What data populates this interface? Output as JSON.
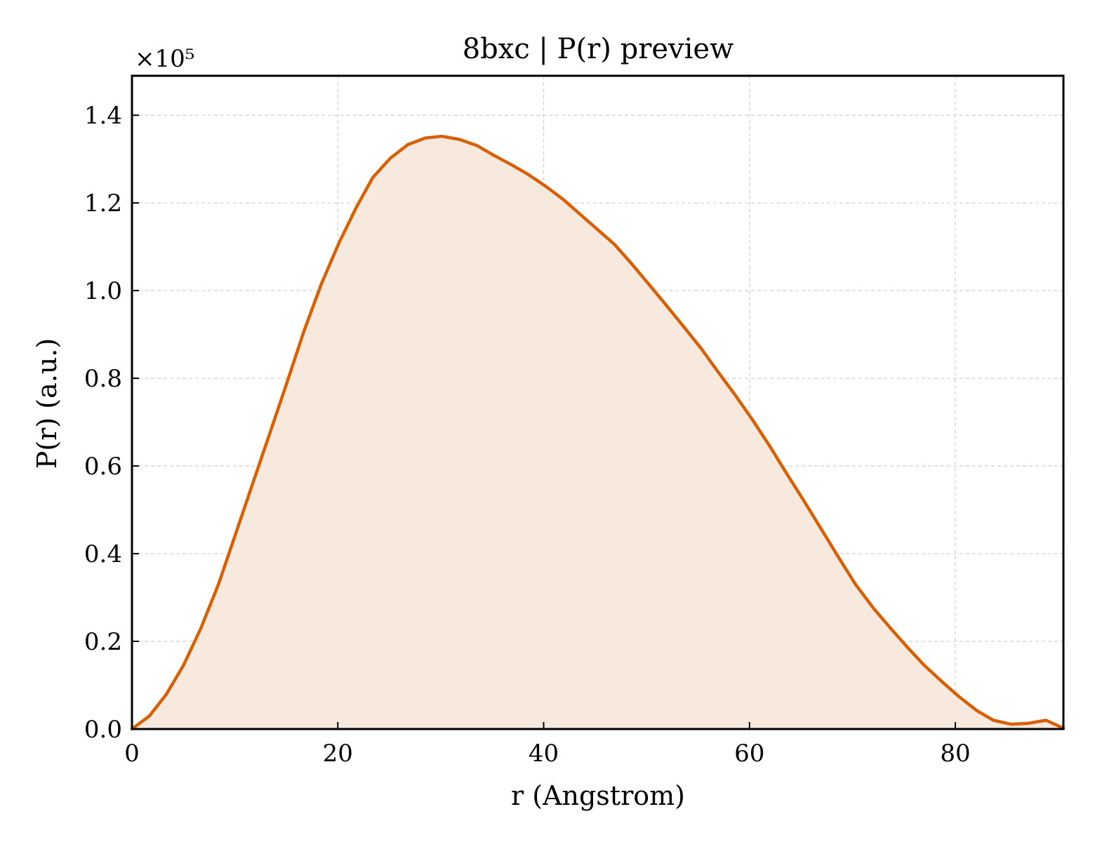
{
  "chart_data": {
    "type": "area",
    "title": "8bxc | P(r) preview",
    "xlabel": "r (Angstrom)",
    "ylabel": "P(r) (a.u.)",
    "y_multiplier_label": "×10⁵",
    "y_multiplier": 100000,
    "xlim": [
      0,
      90.5
    ],
    "ylim": [
      0,
      1.49
    ],
    "xticks": [
      0,
      20,
      40,
      60,
      80
    ],
    "yticks": [
      0.0,
      0.2,
      0.4,
      0.6,
      0.8,
      1.0,
      1.2,
      1.4
    ],
    "xtick_labels": [
      "0",
      "20",
      "40",
      "60",
      "80"
    ],
    "ytick_labels": [
      "0.0",
      "0.2",
      "0.4",
      "0.6",
      "0.8",
      "1.0",
      "1.2",
      "1.4"
    ],
    "grid": true,
    "line_color": "#d95f02",
    "fill_color": "#f8e9de",
    "series": [
      {
        "x": [
          0,
          1.7,
          3.3,
          5.0,
          6.7,
          8.4,
          10.0,
          11.7,
          13.4,
          15.1,
          16.7,
          18.4,
          20.1,
          21.8,
          23.4,
          25.1,
          26.8,
          28.5,
          30.1,
          31.8,
          33.5,
          35.2,
          36.8,
          38.5,
          40.2,
          41.9,
          43.5,
          45.2,
          46.9,
          48.6,
          50.2,
          51.9,
          53.6,
          55.3,
          56.9,
          58.6,
          60.3,
          62.0,
          63.6,
          65.3,
          67.0,
          68.7,
          70.3,
          72.0,
          73.7,
          75.4,
          77.0,
          78.7,
          80.4,
          82.1,
          83.7,
          85.4,
          87.1,
          88.8,
          90.5
        ],
        "y": [
          0.0,
          0.03,
          0.078,
          0.145,
          0.23,
          0.33,
          0.44,
          0.558,
          0.675,
          0.793,
          0.907,
          1.015,
          1.108,
          1.19,
          1.258,
          1.302,
          1.333,
          1.348,
          1.352,
          1.345,
          1.331,
          1.308,
          1.288,
          1.265,
          1.238,
          1.208,
          1.175,
          1.14,
          1.105,
          1.06,
          1.015,
          0.967,
          0.918,
          0.868,
          0.816,
          0.762,
          0.705,
          0.644,
          0.583,
          0.52,
          0.455,
          0.39,
          0.33,
          0.277,
          0.23,
          0.185,
          0.145,
          0.108,
          0.073,
          0.042,
          0.02,
          0.011,
          0.013,
          0.02,
          0.002
        ]
      }
    ]
  }
}
